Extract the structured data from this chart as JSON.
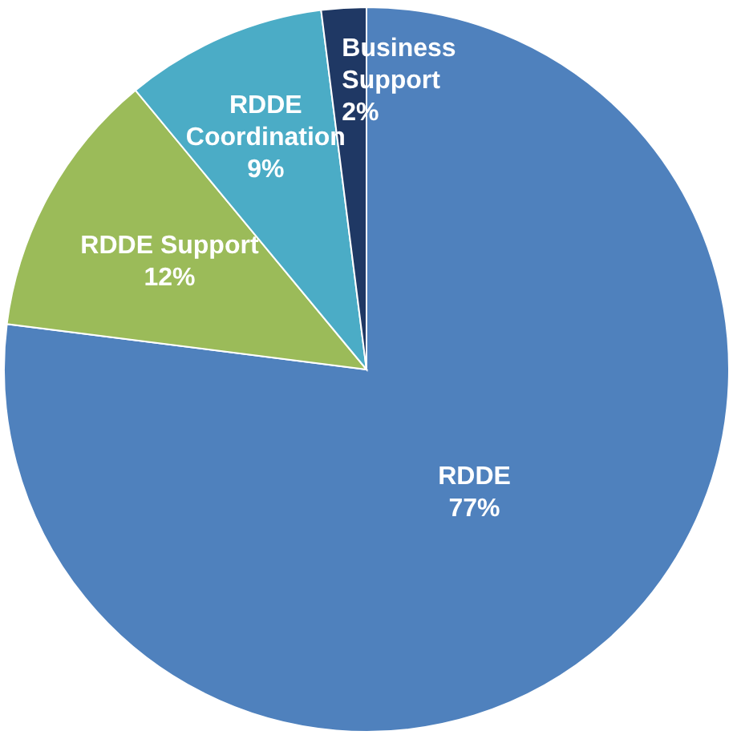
{
  "chart_data": {
    "type": "pie",
    "categories": [
      "RDDE",
      "RDDE Support",
      "RDDE Coordination",
      "Business Support"
    ],
    "values": [
      77,
      12,
      9,
      2
    ],
    "colors": [
      "#4f81bd",
      "#9bbb59",
      "#4bacc6",
      "#1f3864"
    ],
    "value_labels": [
      "77%",
      "12%",
      "9%",
      "2%"
    ]
  }
}
